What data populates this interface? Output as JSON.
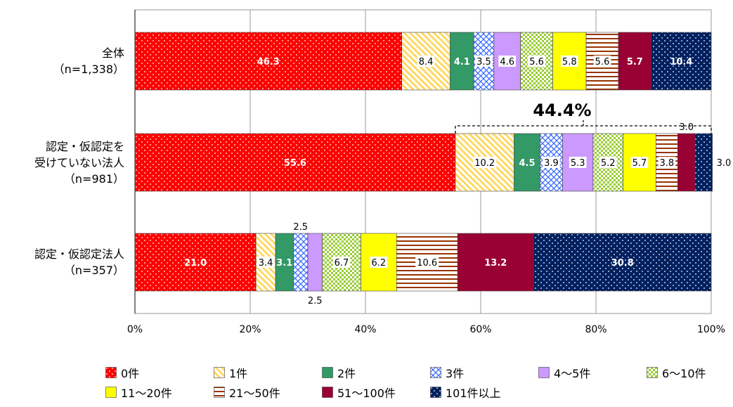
{
  "chart_data": {
    "type": "bar",
    "orientation": "horizontal",
    "stacked": true,
    "xlim": [
      0,
      100
    ],
    "x_ticks": [
      "0%",
      "20%",
      "40%",
      "60%",
      "80%",
      "100%"
    ],
    "grid": true,
    "legend_position": "bottom",
    "categories": [
      {
        "name": "全体",
        "n": "（n=1,338）"
      },
      {
        "name": "認定・仮認定を\n受けていない法人",
        "n": "（n=981）"
      },
      {
        "name": "認定・仮認定法人",
        "n": "（n=357）"
      }
    ],
    "series": [
      {
        "name": "0件",
        "values": [
          46.3,
          55.6,
          21.0
        ],
        "color": "#ff0000",
        "pattern": "dots-white"
      },
      {
        "name": "1件",
        "values": [
          8.4,
          10.2,
          3.4
        ],
        "color": "#ffd966",
        "pattern": "diagonal"
      },
      {
        "name": "2件",
        "values": [
          4.1,
          4.5,
          3.1
        ],
        "color": "#339966",
        "pattern": "solid"
      },
      {
        "name": "3件",
        "values": [
          3.5,
          3.9,
          2.5
        ],
        "color": "#3366ff",
        "pattern": "crosshatch"
      },
      {
        "name": "4～5件",
        "values": [
          4.6,
          5.3,
          2.5
        ],
        "color": "#cc99ff",
        "pattern": "solid"
      },
      {
        "name": "6～10件",
        "values": [
          5.6,
          5.2,
          6.7
        ],
        "color": "#99cc33",
        "pattern": "checker"
      },
      {
        "name": "11～20件",
        "values": [
          5.8,
          5.7,
          6.2
        ],
        "color": "#ffff00",
        "pattern": "solid"
      },
      {
        "name": "21～50件",
        "values": [
          5.6,
          3.8,
          10.6
        ],
        "color": "#993300",
        "pattern": "horizontal"
      },
      {
        "name": "51～100件",
        "values": [
          5.7,
          3.0,
          13.2
        ],
        "color": "#990033",
        "pattern": "solid"
      },
      {
        "name": "101件以上",
        "values": [
          10.4,
          3.0,
          30.8
        ],
        "color": "#002060",
        "pattern": "dots-white"
      }
    ],
    "annotations": [
      {
        "text": "44.4%",
        "category_index": 1,
        "bracket_from": 55.6,
        "bracket_to": 100
      }
    ]
  }
}
